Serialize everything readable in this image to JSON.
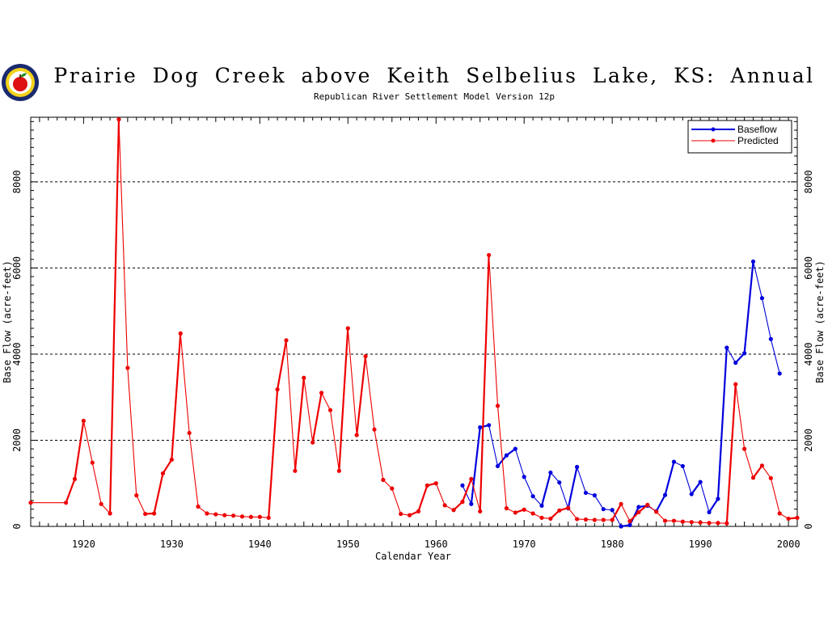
{
  "title": "Prairie Dog Creek above Keith Selbelius Lake, KS: Annual",
  "subtitle": "Republican River Settlement Model Version 12p",
  "colors": {
    "baseflow": "#0000dd",
    "predicted": "#ee0000",
    "grid": "#000000"
  },
  "chart_data": {
    "type": "line",
    "xlabel": "Calendar Year",
    "ylabel": "Base Flow (acre-feet)",
    "xlim": [
      1914,
      2001
    ],
    "ylim": [
      0,
      9500
    ],
    "x_ticks": [
      1920,
      1930,
      1940,
      1950,
      1960,
      1970,
      1980,
      1990,
      2000
    ],
    "y_ticks": [
      0,
      2000,
      4000,
      6000,
      8000
    ],
    "grid": "horizontal dashed at 2000, 4000, 6000, 8000",
    "legend_position": "top-right",
    "series": [
      {
        "name": "Baseflow",
        "color": "#0000dd",
        "points": [
          [
            1963,
            950
          ],
          [
            1964,
            520
          ],
          [
            1965,
            2300
          ],
          [
            1966,
            2350
          ],
          [
            1967,
            1400
          ],
          [
            1968,
            1650
          ],
          [
            1969,
            1800
          ],
          [
            1970,
            1150
          ],
          [
            1971,
            700
          ],
          [
            1972,
            480
          ],
          [
            1973,
            1250
          ],
          [
            1974,
            1020
          ],
          [
            1975,
            420
          ],
          [
            1976,
            1380
          ],
          [
            1977,
            780
          ],
          [
            1978,
            720
          ],
          [
            1979,
            400
          ],
          [
            1980,
            380
          ],
          [
            1981,
            0
          ],
          [
            1982,
            30
          ],
          [
            1983,
            450
          ],
          [
            1984,
            480
          ],
          [
            1985,
            350
          ],
          [
            1986,
            730
          ],
          [
            1987,
            1500
          ],
          [
            1988,
            1400
          ],
          [
            1989,
            750
          ],
          [
            1990,
            1030
          ],
          [
            1991,
            330
          ],
          [
            1992,
            640
          ],
          [
            1993,
            4150
          ],
          [
            1994,
            3800
          ],
          [
            1995,
            4020
          ],
          [
            1996,
            6150
          ],
          [
            1997,
            5300
          ],
          [
            1998,
            4350
          ],
          [
            1999,
            3550
          ]
        ]
      },
      {
        "name": "Predicted",
        "color": "#ee0000",
        "points": [
          [
            1914,
            550
          ],
          [
            1918,
            550
          ],
          [
            1919,
            1100
          ],
          [
            1920,
            2450
          ],
          [
            1921,
            1480
          ],
          [
            1922,
            520
          ],
          [
            1923,
            300
          ],
          [
            1924,
            9450
          ],
          [
            1925,
            3680
          ],
          [
            1926,
            720
          ],
          [
            1927,
            290
          ],
          [
            1928,
            300
          ],
          [
            1929,
            1230
          ],
          [
            1930,
            1550
          ],
          [
            1931,
            4480
          ],
          [
            1932,
            2170
          ],
          [
            1933,
            460
          ],
          [
            1934,
            300
          ],
          [
            1935,
            280
          ],
          [
            1936,
            260
          ],
          [
            1937,
            250
          ],
          [
            1938,
            230
          ],
          [
            1939,
            220
          ],
          [
            1940,
            220
          ],
          [
            1941,
            200
          ],
          [
            1942,
            3180
          ],
          [
            1943,
            4320
          ],
          [
            1944,
            1290
          ],
          [
            1945,
            3450
          ],
          [
            1946,
            1950
          ],
          [
            1947,
            3100
          ],
          [
            1948,
            2700
          ],
          [
            1949,
            1290
          ],
          [
            1950,
            4600
          ],
          [
            1951,
            2120
          ],
          [
            1952,
            3950
          ],
          [
            1953,
            2250
          ],
          [
            1954,
            1080
          ],
          [
            1955,
            880
          ],
          [
            1956,
            290
          ],
          [
            1957,
            260
          ],
          [
            1958,
            350
          ],
          [
            1959,
            950
          ],
          [
            1960,
            1000
          ],
          [
            1961,
            490
          ],
          [
            1962,
            380
          ],
          [
            1963,
            570
          ],
          [
            1964,
            1100
          ],
          [
            1965,
            350
          ],
          [
            1966,
            6300
          ],
          [
            1967,
            2800
          ],
          [
            1968,
            420
          ],
          [
            1969,
            320
          ],
          [
            1970,
            390
          ],
          [
            1971,
            300
          ],
          [
            1972,
            200
          ],
          [
            1973,
            180
          ],
          [
            1974,
            370
          ],
          [
            1975,
            430
          ],
          [
            1976,
            170
          ],
          [
            1977,
            160
          ],
          [
            1978,
            150
          ],
          [
            1979,
            150
          ],
          [
            1980,
            150
          ],
          [
            1981,
            520
          ],
          [
            1982,
            120
          ],
          [
            1983,
            330
          ],
          [
            1984,
            500
          ],
          [
            1985,
            340
          ],
          [
            1986,
            130
          ],
          [
            1987,
            130
          ],
          [
            1988,
            110
          ],
          [
            1989,
            100
          ],
          [
            1990,
            90
          ],
          [
            1991,
            80
          ],
          [
            1992,
            80
          ],
          [
            1993,
            70
          ],
          [
            1994,
            3300
          ],
          [
            1995,
            1800
          ],
          [
            1996,
            1130
          ],
          [
            1997,
            1410
          ],
          [
            1998,
            1120
          ],
          [
            1999,
            300
          ],
          [
            2000,
            180
          ],
          [
            2001,
            200
          ]
        ]
      }
    ]
  }
}
